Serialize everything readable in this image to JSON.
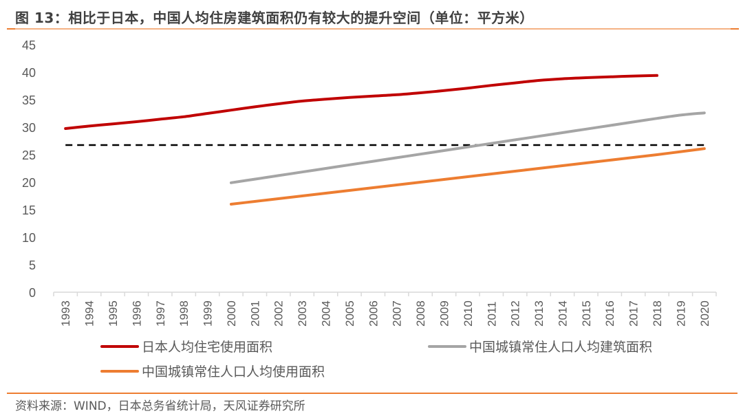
{
  "title": "图 13：相比于日本，中国人均住房建筑面积仍有较大的提升空间（单位：平方米）",
  "source": "资料来源：WIND，日本总务省统计局，天风证券研究所",
  "chart_data": {
    "type": "line",
    "title": "相比于日本，中国人均住房建筑面积仍有较大的提升空间（单位：平方米）",
    "xlabel": "",
    "ylabel": "",
    "ylim": [
      0,
      45
    ],
    "yticks": [
      0,
      5,
      10,
      15,
      20,
      25,
      30,
      35,
      40,
      45
    ],
    "grid": false,
    "legend_position": "bottom",
    "categories": [
      "1993",
      "1994",
      "1995",
      "1996",
      "1997",
      "1998",
      "1999",
      "2000",
      "2001",
      "2002",
      "2003",
      "2004",
      "2005",
      "2006",
      "2007",
      "2008",
      "2009",
      "2010",
      "2011",
      "2012",
      "2013",
      "2014",
      "2015",
      "2016",
      "2017",
      "2018",
      "2019",
      "2020"
    ],
    "series": [
      {
        "name": "日本人均住宅使用面积",
        "color": "#c00000",
        "values": [
          29.75,
          30.2,
          30.6,
          31.0,
          31.45,
          31.9,
          32.5,
          33.1,
          33.7,
          34.25,
          34.75,
          35.1,
          35.4,
          35.65,
          35.9,
          36.25,
          36.65,
          37.1,
          37.6,
          38.05,
          38.5,
          38.8,
          39.0,
          39.15,
          39.3,
          39.4,
          null,
          null
        ]
      },
      {
        "name": "中国城镇常住人口人均建筑面积",
        "color": "#a5a5a5",
        "values": [
          null,
          null,
          null,
          null,
          null,
          null,
          null,
          19.9,
          20.55,
          21.2,
          21.85,
          22.5,
          23.15,
          23.8,
          24.45,
          25.1,
          25.75,
          26.4,
          27.05,
          27.7,
          28.35,
          29.0,
          29.65,
          30.3,
          30.95,
          31.6,
          32.2,
          32.6
        ]
      },
      {
        "name": "中国城镇常住人口人均使用面积",
        "color": "#ed7d31",
        "values": [
          null,
          null,
          null,
          null,
          null,
          null,
          null,
          16.0,
          16.5,
          17.0,
          17.5,
          18.0,
          18.5,
          19.0,
          19.5,
          20.0,
          20.5,
          21.0,
          21.5,
          22.0,
          22.5,
          23.0,
          23.5,
          24.0,
          24.5,
          25.0,
          25.55,
          26.1
        ]
      }
    ],
    "reference_line": {
      "value": 26.75,
      "style": "dashed",
      "color": "#000000",
      "from": "1993",
      "to": "2020"
    }
  }
}
